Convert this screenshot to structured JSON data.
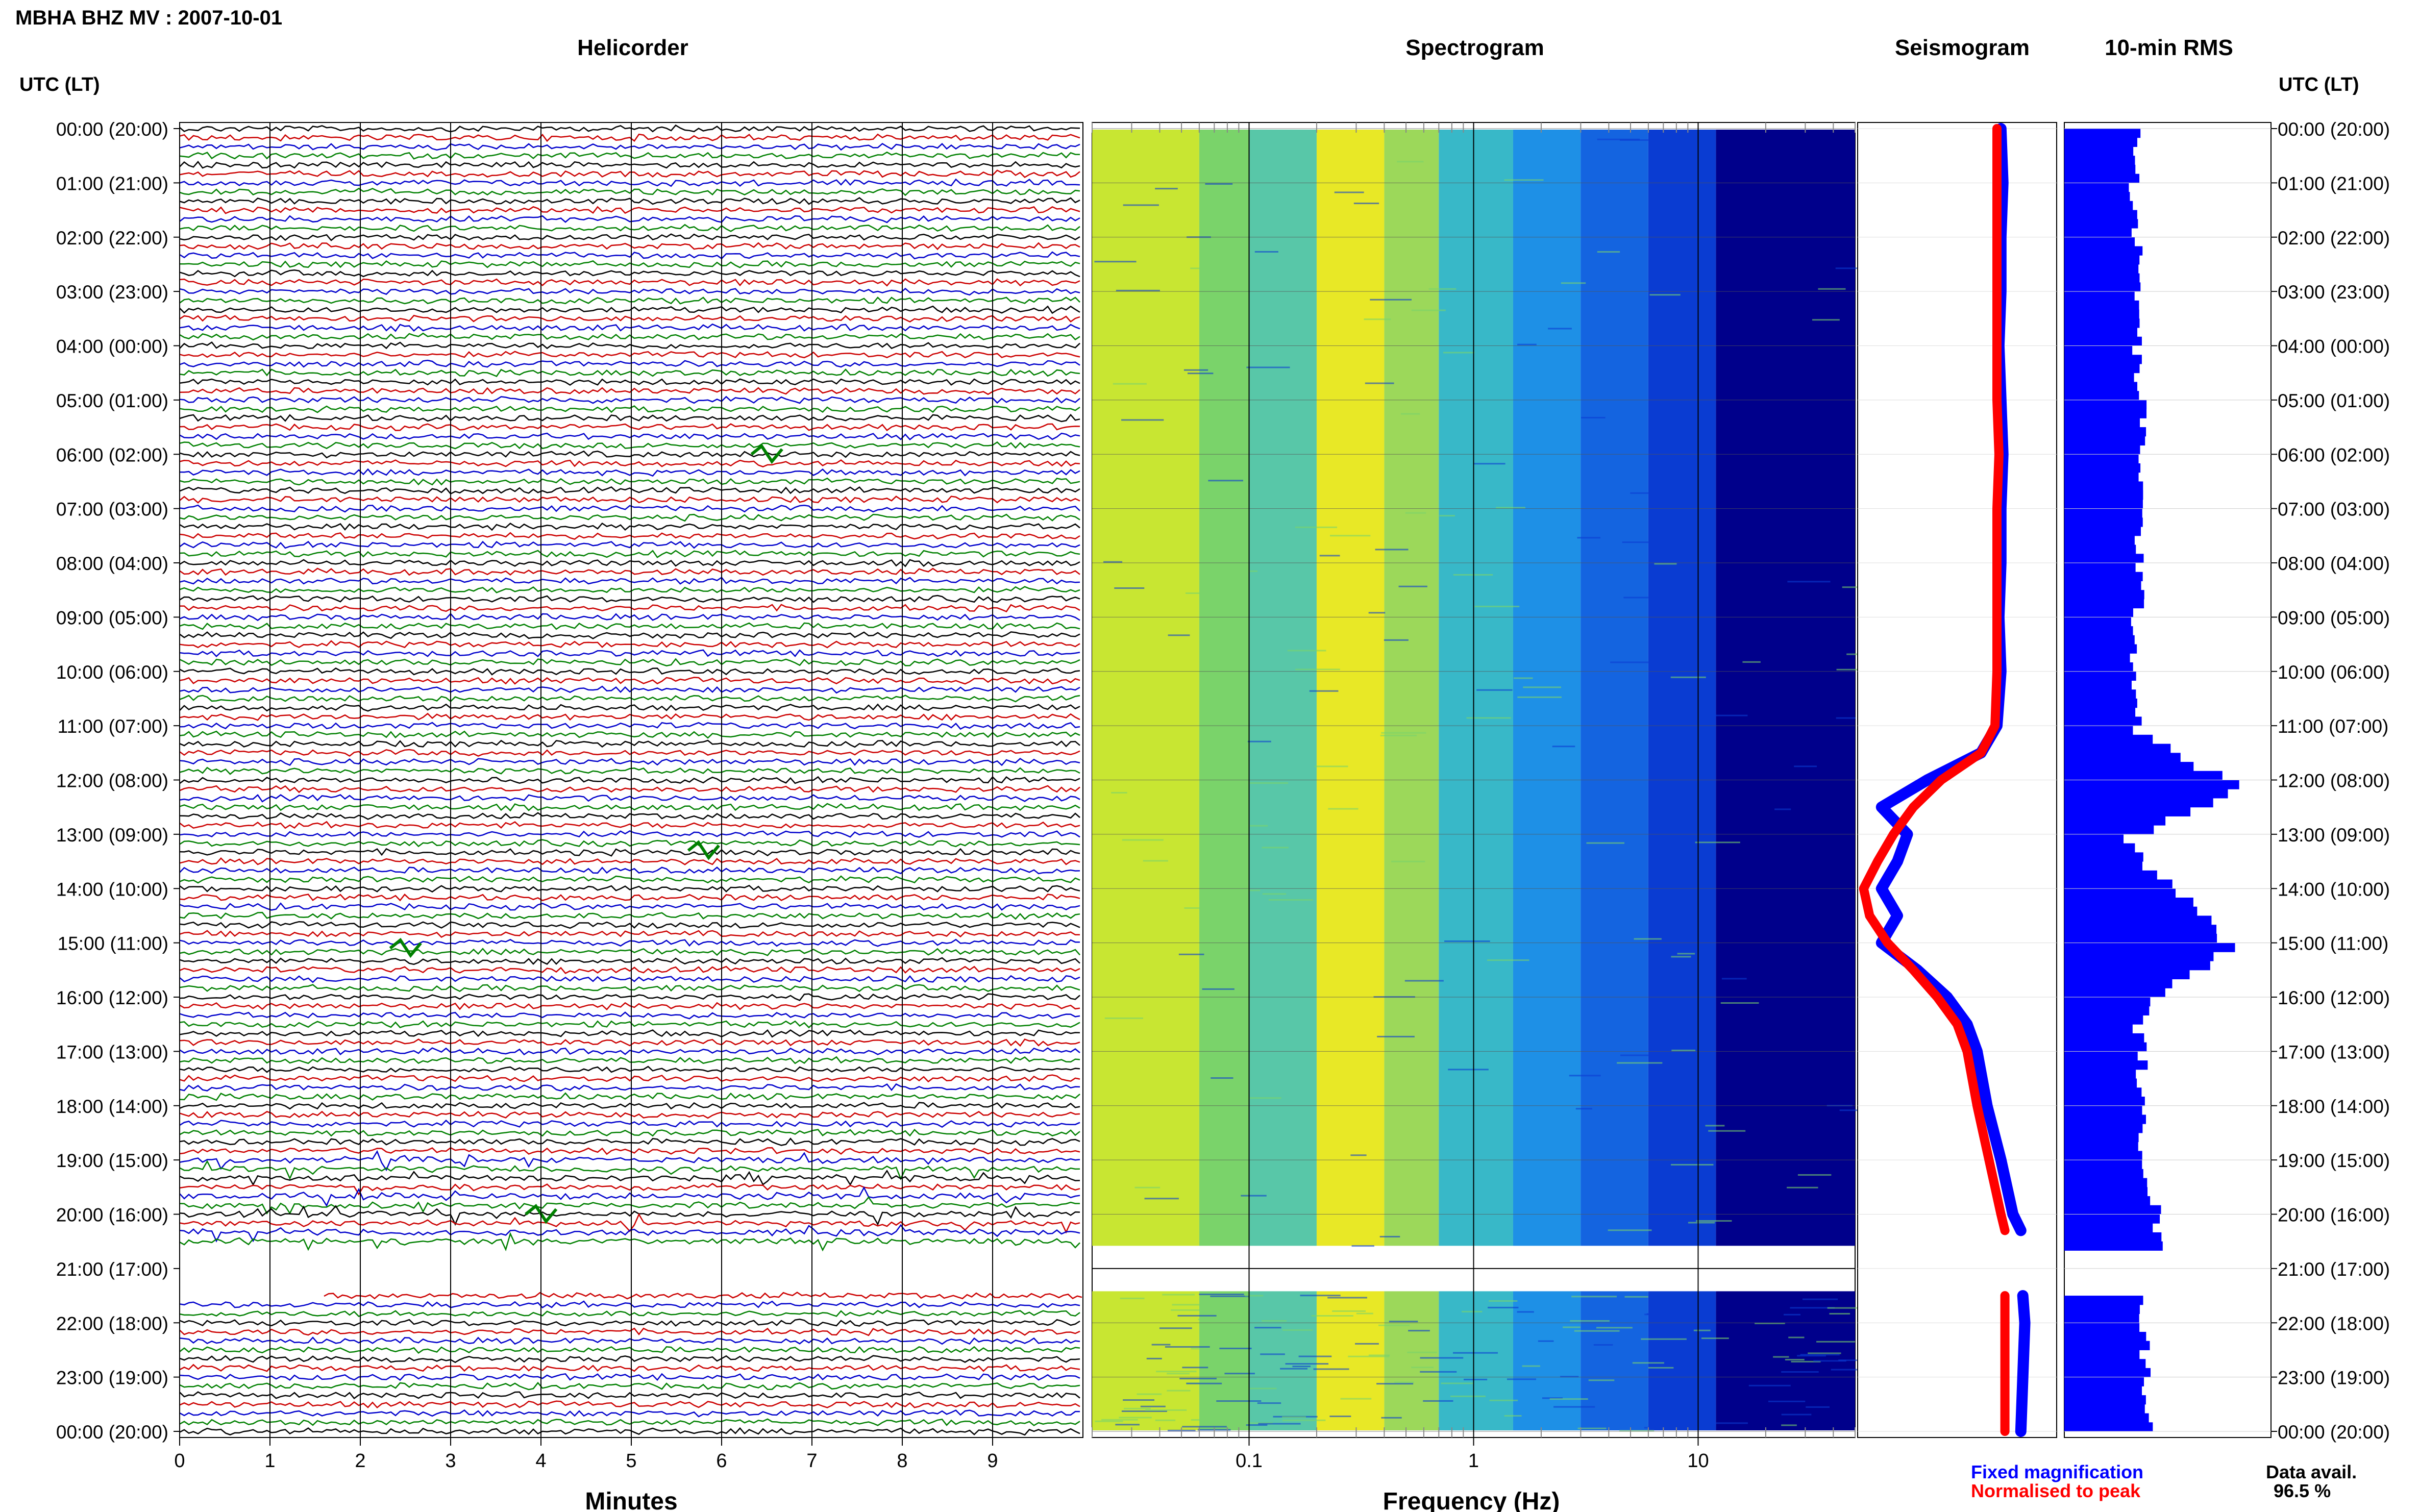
{
  "title": "MBHA BHZ MV : 2007-10-01",
  "panels": {
    "helicorder": "Helicorder",
    "spectrogram": "Spectrogram",
    "seismogram": "Seismogram",
    "rms": "10-min RMS"
  },
  "time_header": "UTC (LT)",
  "time_labels": [
    "00:00 (20:00)",
    "01:00 (21:00)",
    "02:00 (22:00)",
    "03:00 (23:00)",
    "04:00 (00:00)",
    "05:00 (01:00)",
    "06:00 (02:00)",
    "07:00 (03:00)",
    "08:00 (04:00)",
    "09:00 (05:00)",
    "10:00 (06:00)",
    "11:00 (07:00)",
    "12:00 (08:00)",
    "13:00 (09:00)",
    "14:00 (10:00)",
    "15:00 (11:00)",
    "16:00 (12:00)",
    "17:00 (13:00)",
    "18:00 (14:00)",
    "19:00 (15:00)",
    "20:00 (16:00)",
    "21:00 (17:00)",
    "22:00 (18:00)",
    "23:00 (19:00)",
    "00:00 (20:00)"
  ],
  "legend": {
    "fixed": "Fixed magnification",
    "normalised": "Normalised to peak",
    "fixed_color": "#0000ff",
    "normalised_color": "#ff0000"
  },
  "data_avail": {
    "label": "Data avail.",
    "value": "96.5 %"
  },
  "colors": {
    "trace_cycle": [
      "#000000",
      "#cc0000",
      "#0000cc",
      "#008000"
    ],
    "spectrogram_low": "#00008b",
    "spectrogram_high": "#ffff00",
    "rms_bar": "#0000ff"
  },
  "chart_data": [
    {
      "type": "line",
      "name": "helicorder",
      "xlabel": "Minutes",
      "xticks": [
        "0",
        "1",
        "2",
        "3",
        "4",
        "5",
        "6",
        "7",
        "8",
        "9"
      ],
      "xlim": [
        0,
        10
      ],
      "hours_range": [
        0,
        24
      ],
      "gap_hours": [
        20.6,
        21.4
      ],
      "events": [
        {
          "hour": 15.1,
          "minute": 2.5
        },
        {
          "hour": 13.3,
          "minute": 5.8
        },
        {
          "hour": 6.0,
          "minute": 6.5
        },
        {
          "hour": 20.0,
          "minute": 4.0
        }
      ]
    },
    {
      "type": "heatmap",
      "name": "spectrogram",
      "xlabel": "Frequency (Hz)",
      "xscale": "log",
      "xticks": [
        "0.1",
        "1",
        "10"
      ],
      "xlim": [
        0.02,
        50
      ],
      "hours_range": [
        0,
        24
      ]
    },
    {
      "type": "line",
      "name": "seismogram",
      "series": [
        {
          "name": "Fixed magnification",
          "hours": [
            0,
            1,
            2,
            3,
            4,
            5,
            6,
            7,
            8,
            9,
            10,
            11,
            11.5,
            12,
            12.5,
            13,
            13.5,
            14,
            14.5,
            15,
            15.5,
            16,
            16.5,
            17,
            18,
            19,
            20,
            20.3,
            21.5,
            22,
            23,
            24
          ],
          "values": [
            0.72,
            0.73,
            0.72,
            0.72,
            0.71,
            0.72,
            0.73,
            0.72,
            0.72,
            0.71,
            0.72,
            0.7,
            0.62,
            0.35,
            0.12,
            0.25,
            0.2,
            0.12,
            0.2,
            0.12,
            0.3,
            0.45,
            0.55,
            0.6,
            0.65,
            0.72,
            0.78,
            0.82,
            0.83,
            0.84,
            0.83,
            0.82
          ]
        },
        {
          "name": "Normalised to peak",
          "hours": [
            0,
            1,
            2,
            3,
            4,
            5,
            6,
            7,
            8,
            9,
            10,
            11,
            11.5,
            12,
            12.5,
            13,
            13.5,
            14,
            14.5,
            15,
            15.5,
            16,
            16.5,
            17,
            18,
            19,
            20,
            20.3,
            21.5,
            22,
            23,
            24
          ],
          "values": [
            0.7,
            0.7,
            0.7,
            0.7,
            0.7,
            0.7,
            0.71,
            0.7,
            0.7,
            0.7,
            0.7,
            0.69,
            0.62,
            0.42,
            0.28,
            0.18,
            0.1,
            0.03,
            0.06,
            0.15,
            0.28,
            0.4,
            0.5,
            0.55,
            0.6,
            0.66,
            0.72,
            0.74,
            0.74,
            0.74,
            0.74,
            0.74
          ]
        }
      ]
    },
    {
      "type": "bar",
      "name": "10-min RMS",
      "hours": [
        0,
        1,
        2,
        3,
        4,
        5,
        6,
        7,
        8,
        9,
        10,
        11,
        11.5,
        12,
        12.5,
        13,
        13.5,
        14,
        14.5,
        15,
        15.5,
        16,
        16.5,
        17,
        18,
        19,
        20,
        20.5,
        21.4,
        22,
        23,
        24
      ],
      "values": [
        0.35,
        0.34,
        0.35,
        0.36,
        0.35,
        0.37,
        0.38,
        0.36,
        0.37,
        0.35,
        0.34,
        0.36,
        0.55,
        0.85,
        0.62,
        0.3,
        0.4,
        0.55,
        0.7,
        0.8,
        0.62,
        0.4,
        0.36,
        0.38,
        0.36,
        0.4,
        0.45,
        0.45,
        0.4,
        0.38,
        0.4,
        0.42
      ]
    }
  ]
}
